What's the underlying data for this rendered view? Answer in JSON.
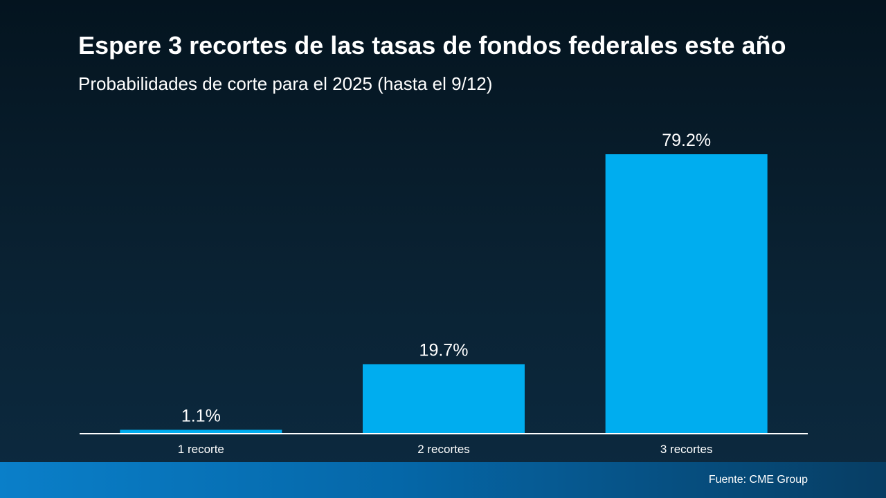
{
  "header": {
    "title": "Espere 3 recortes de las tasas de fondos federales este año",
    "subtitle": "Probabilidades de corte para el 2025 (hasta el 9/12)"
  },
  "footer": {
    "source": "Fuente: CME Group"
  },
  "colors": {
    "bar": "#00adef",
    "axis": "#ffffff",
    "text": "#ffffff"
  },
  "chart_data": {
    "type": "bar",
    "title": "Espere 3 recortes de las tasas de fondos federales este año",
    "subtitle": "Probabilidades de corte para el 2025 (hasta el 9/12)",
    "categories": [
      "1 recorte",
      "2 recortes",
      "3 recortes"
    ],
    "values": [
      1.1,
      19.7,
      79.2
    ],
    "data_labels": [
      "1.1%",
      "19.7%",
      "79.2%"
    ],
    "unit": "%",
    "ylim": [
      0,
      79.2
    ],
    "grid": false,
    "legend": "none"
  }
}
